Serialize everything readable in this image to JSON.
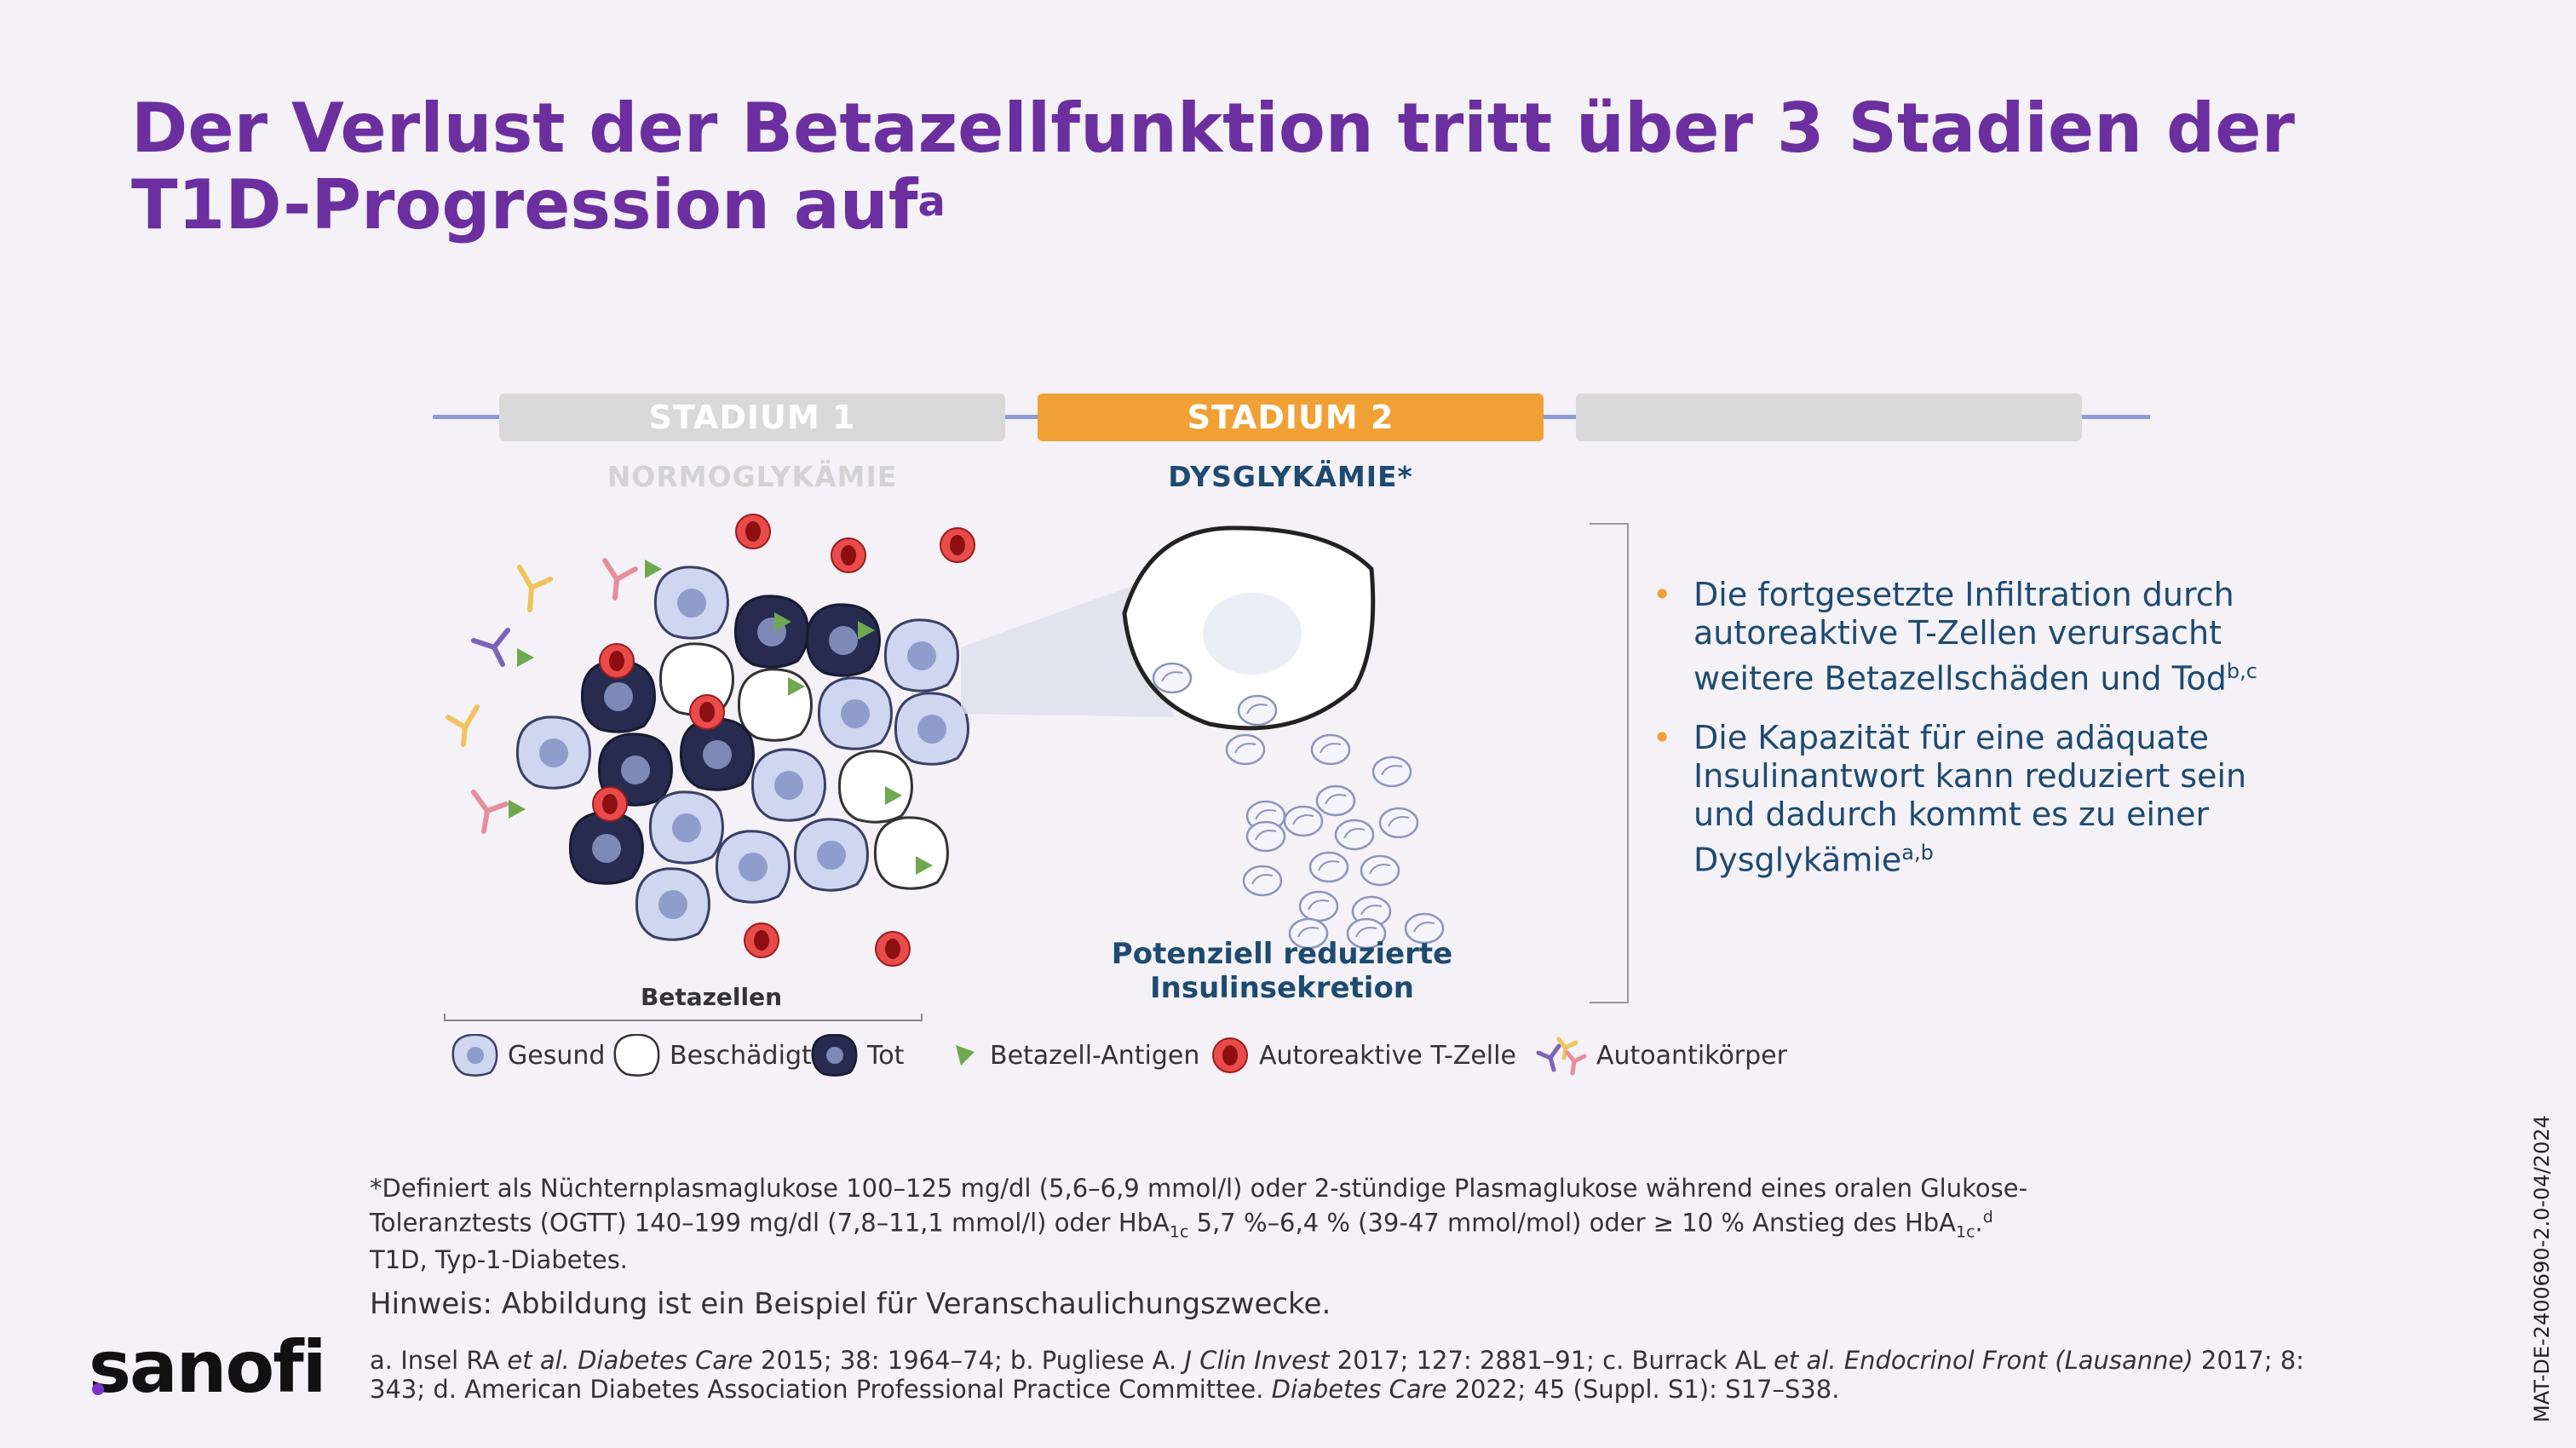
{
  "title": {
    "line1": "Der Verlust der Betazellfunktion tritt über 3 Stadien der",
    "line2": "T1D-Progression auf",
    "sup": "a"
  },
  "stages": [
    {
      "label": "STADIUM 1",
      "sub": "NORMOGLYKÄMIE",
      "state": "inactive"
    },
    {
      "label": "STADIUM 2",
      "sub": "DYSGLYKÄMIE*",
      "state": "active"
    },
    {
      "label": "",
      "sub": "",
      "state": "inactive"
    }
  ],
  "figure": {
    "beta_cells_label": "Betazellen",
    "insulin_label_line1": "Potenziell reduzierte",
    "insulin_label_line2": "Insulinsekretion"
  },
  "bullets": [
    {
      "text": "Die fortgesetzte Infiltration durch autoreaktive T-Zellen verursacht weitere Betazellschäden und Tod",
      "sup": "b,c"
    },
    {
      "text": "Die Kapazität für eine adäquate Insulinantwort kann reduziert sein und dadurch kommt es zu einer Dysglykämie",
      "sup": "a,b"
    }
  ],
  "legend": [
    {
      "icon": "healthy-cell-icon",
      "label": "Gesund"
    },
    {
      "icon": "damaged-cell-icon",
      "label": "Beschädigt"
    },
    {
      "icon": "dead-cell-icon",
      "label": "Tot"
    },
    {
      "icon": "beta-cell-antigen-icon",
      "label": "Betazell-Antigen"
    },
    {
      "icon": "autoreactive-t-cell-icon",
      "label": "Autoreaktive T-Zelle"
    },
    {
      "icon": "autoantibody-icon",
      "label": "Autoantikörper"
    }
  ],
  "footnotes": {
    "definition_line1": "*Definiert als Nüchternplasmaglukose 100–125 mg/dl (5,6–6,9 mmol/l) oder 2-stündige Plasmaglukose während eines oralen Glukose-",
    "definition_line2a": "Toleranztests (OGTT) 140–199 mg/dl (7,8–11,1 mmol/l)  oder HbA",
    "definition_line2_sub1": "1c",
    "definition_line2b": " 5,7 %–6,4 % (39-47 mmol/mol) oder ≥ 10 % Anstieg des HbA",
    "definition_line2_sub2": "1c",
    "definition_line2c": ".",
    "definition_line2_sup": "d",
    "abbrev": "T1D, Typ-1-Diabetes.",
    "note": "Hinweis: Abbildung ist ein Beispiel für Veranschaulichungszwecke.",
    "ref_a1": "a. Insel RA ",
    "ref_a_etal": "et al.",
    "ref_a_journal": " Diabetes Care",
    "ref_a2": " 2015; 38: 1964–74; b. Pugliese A. ",
    "ref_b_journal": "J Clin Invest",
    "ref_b2": " 2017; 127: 2881–91; c. Burrack AL ",
    "ref_c_etal": "et al.",
    "ref_c_journal": " Endocrinol Front (Lausanne)",
    "ref_c2": " 2017; 8:",
    "ref_line2a": "343; d. American Diabetes Association Professional Practice Committee. ",
    "ref_d_journal": "Diabetes Care",
    "ref_line2b": " 2022; 45 (Suppl. S1): S17–S38."
  },
  "doc_code": "MAT-DE-2400690-2.0-04/2024",
  "logo": "sanofi",
  "colors": {
    "title": "#6b2fa0",
    "stage_active": "#f0a035",
    "stage_inactive": "#d9d9d9",
    "timeline": "#8c9ad8",
    "bullet_text": "#1d4a70",
    "bullet_marker": "#f0a035"
  }
}
